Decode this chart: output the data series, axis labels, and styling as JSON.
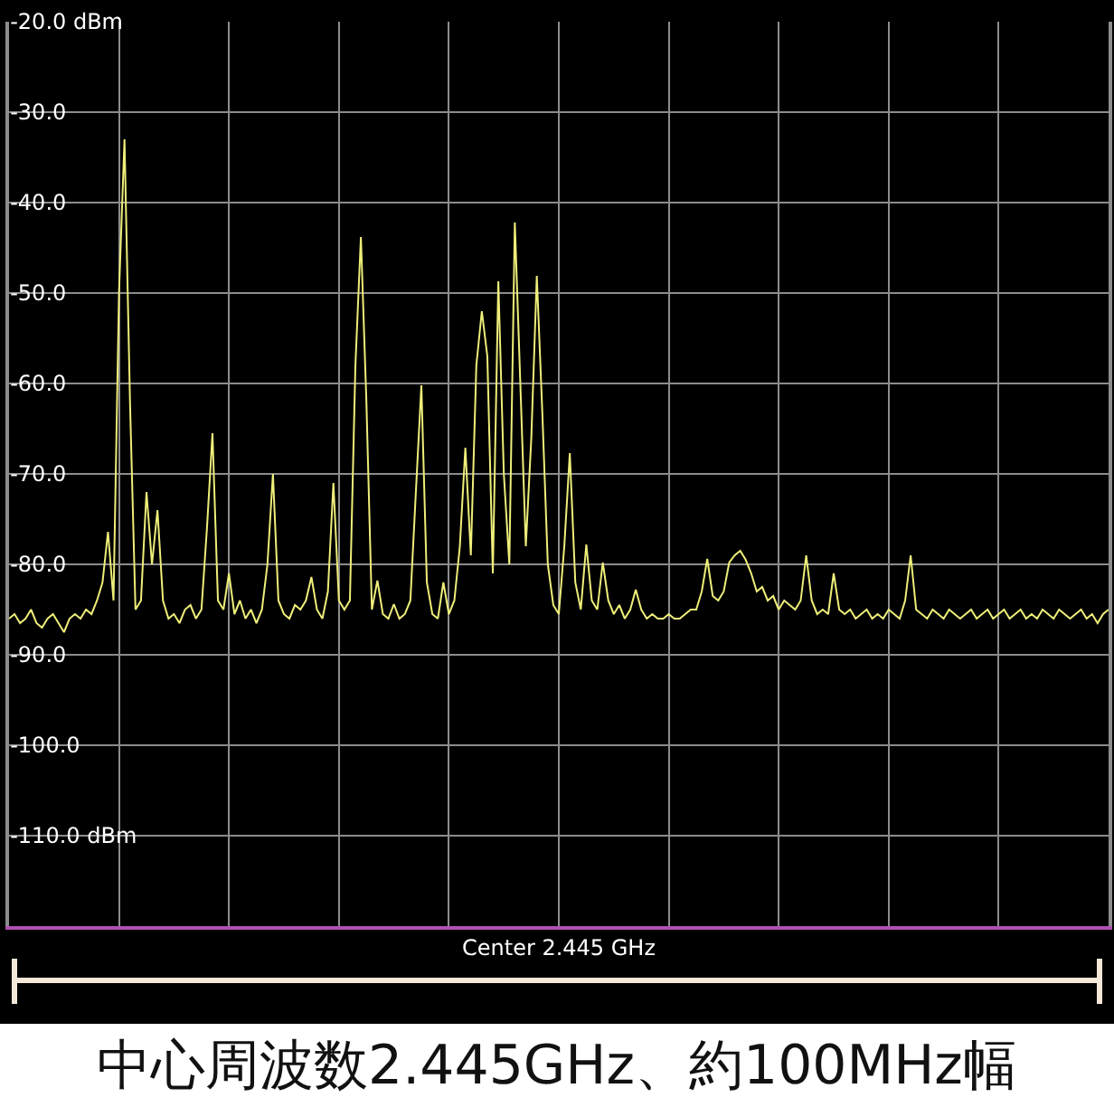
{
  "chart_data": {
    "type": "line",
    "xlabel": "Center 2.445 GHz",
    "marker": "none",
    "line_style": "solid",
    "grid": true,
    "ylim": [
      -120,
      -20
    ],
    "yticks": [
      {
        "value": -20,
        "label": "-20.0 dBm"
      },
      {
        "value": -30,
        "label": "-30.0"
      },
      {
        "value": -40,
        "label": "-40.0"
      },
      {
        "value": -50,
        "label": "-50.0"
      },
      {
        "value": -60,
        "label": "-60.0"
      },
      {
        "value": -70,
        "label": "-70.0"
      },
      {
        "value": -80,
        "label": "-80.0"
      },
      {
        "value": -90,
        "label": "-90.0"
      },
      {
        "value": -100,
        "label": "-100.0"
      },
      {
        "value": -110,
        "label": "-110.0 dBm"
      },
      {
        "value": -120,
        "label": null
      }
    ],
    "annotations": [
      "中心周波数2.445GHz、約100MHz幅"
    ],
    "categories": [
      null,
      null,
      null,
      null,
      null,
      null,
      null,
      null,
      null,
      null,
      null,
      null,
      null,
      null,
      null,
      null,
      null,
      null,
      null,
      null,
      null,
      null,
      null,
      null,
      null,
      null,
      null,
      null,
      null,
      null,
      null,
      null,
      null,
      null,
      null,
      null,
      null,
      null,
      null,
      null,
      null,
      null,
      null,
      null,
      null,
      null,
      null,
      null,
      null,
      null,
      null,
      null,
      null,
      null,
      null,
      null,
      null,
      null,
      null,
      null,
      null,
      null,
      null,
      null,
      null,
      null,
      null,
      null,
      null,
      null,
      null,
      null,
      null,
      null,
      null,
      null,
      null,
      null,
      null,
      null,
      null,
      null,
      null,
      null,
      null,
      null,
      null,
      null,
      null,
      null,
      null,
      null,
      null,
      null,
      null,
      null,
      null,
      null,
      null,
      null,
      null,
      null,
      null,
      null,
      null,
      null,
      null,
      null,
      null,
      null,
      null,
      null,
      null,
      null,
      null,
      null,
      null,
      null,
      null,
      null,
      null,
      null,
      null,
      null,
      null,
      null,
      null,
      null,
      null,
      null,
      null,
      null,
      null,
      null,
      null,
      null,
      null,
      null,
      null,
      null,
      null,
      null,
      null,
      null,
      null,
      null,
      null,
      null,
      null,
      null,
      null,
      null,
      null,
      null,
      null,
      null,
      null,
      null,
      null,
      null,
      null,
      null,
      null,
      null,
      null,
      null,
      null,
      null,
      null,
      null,
      null,
      null,
      null,
      null,
      null,
      null,
      null,
      null,
      null,
      null,
      null,
      null,
      null,
      null,
      null,
      null,
      null,
      null,
      null,
      null,
      null,
      null,
      null,
      null,
      null,
      null,
      null,
      null,
      null,
      null,
      null
    ],
    "series": [
      {
        "color": "#eeee7a",
        "values": [
          -86,
          -85.5,
          -86.5,
          -86,
          -85,
          -86.5,
          -87,
          -86,
          -85.5,
          -86.5,
          -87.5,
          -86,
          -85.5,
          -86,
          -85,
          -85.5,
          -84,
          -82,
          -76.4,
          -84,
          -50,
          -33,
          -62,
          -85,
          -84,
          -72,
          -80,
          -74,
          -84,
          -86,
          -85.5,
          -86.5,
          -85,
          -84.5,
          -86,
          -85,
          -76,
          -65.5,
          -84,
          -85,
          -81,
          -85.5,
          -84,
          -86,
          -85,
          -86.5,
          -85,
          -80,
          -70,
          -84,
          -85.5,
          -86,
          -84.5,
          -85,
          -84,
          -81.4,
          -85,
          -86,
          -83,
          -71,
          -84,
          -85,
          -84,
          -58,
          -43.8,
          -62,
          -85,
          -81.8,
          -85.5,
          -86,
          -84.4,
          -86,
          -85.5,
          -84,
          -72,
          -60.2,
          -82,
          -85.5,
          -86,
          -82,
          -85.5,
          -84,
          -78,
          -67.1,
          -79,
          -58,
          -52,
          -57,
          -81,
          -48.7,
          -70,
          -80,
          -42.2,
          -60,
          -78,
          -66,
          -48.1,
          -63.2,
          -80,
          -84.5,
          -85.5,
          -78,
          -67.7,
          -82,
          -85,
          -77.8,
          -84,
          -85,
          -79.8,
          -84,
          -85.5,
          -84.5,
          -86,
          -85,
          -82.8,
          -85,
          -86,
          -85.5,
          -86,
          -86,
          -85.5,
          -86,
          -86,
          -85.5,
          -85,
          -85,
          -83,
          -79.4,
          -83.5,
          -84,
          -83,
          -79.8,
          -79,
          -78.5,
          -79.5,
          -81,
          -83,
          -82.5,
          -84,
          -83.5,
          -85,
          -84,
          -84.5,
          -85,
          -84,
          -79,
          -84,
          -85.5,
          -85,
          -85.5,
          -81,
          -85,
          -85.5,
          -85,
          -86,
          -85.5,
          -85,
          -86,
          -85.5,
          -86,
          -85,
          -85.5,
          -86,
          -84,
          -79,
          -85,
          -85.5,
          -86,
          -85,
          -85.5,
          -86,
          -85,
          -85.5,
          -86,
          -85.5,
          -85,
          -86,
          -85.5,
          -85,
          -86,
          -85.5,
          -85,
          -86,
          -85.5,
          -85,
          -86,
          -85.5,
          -86,
          -85,
          -85.5,
          -86,
          -85,
          -85.5,
          -86,
          -85.5,
          -85,
          -86,
          -85.5,
          -86.5,
          -85.5,
          -85
        ]
      }
    ]
  }
}
